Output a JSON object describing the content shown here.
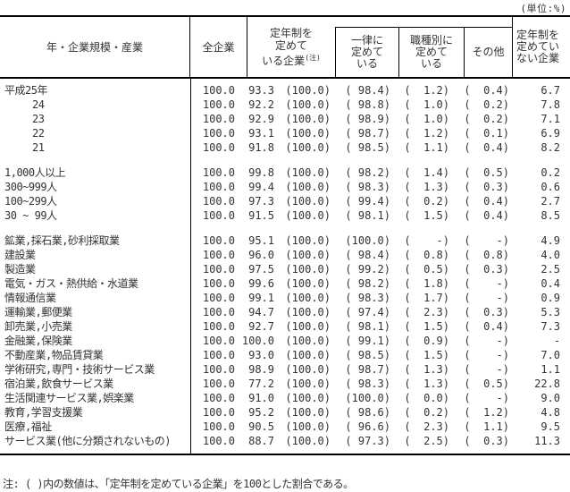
{
  "unit_label": "(単位:%)",
  "header": {
    "category": "年・企業規模・産業",
    "all_companies": "全企業",
    "teinen_group_lines": [
      "定年制を",
      "定めて",
      "いる企業"
    ],
    "teinen_note_mark": "(注)",
    "uniform_lines": [
      "一律に",
      "定めて",
      "いる"
    ],
    "by_job_lines": [
      "職種別に",
      "定めて",
      "いる"
    ],
    "other": "その他",
    "no_teinen_lines": [
      "定年制を",
      "定めてい",
      "ない企業"
    ]
  },
  "table": {
    "sections": [
      {
        "name": "years",
        "rows": [
          {
            "label": "平成25年",
            "indent": false,
            "values": [
              "100.0",
              "93.3",
              "(100.0)",
              "( 98.4)",
              "(  1.2)",
              "(  0.4)",
              "6.7"
            ]
          },
          {
            "label": "24",
            "indent": true,
            "values": [
              "100.0",
              "92.2",
              "(100.0)",
              "( 98.8)",
              "(  1.0)",
              "(  0.2)",
              "7.8"
            ]
          },
          {
            "label": "23",
            "indent": true,
            "values": [
              "100.0",
              "92.9",
              "(100.0)",
              "( 98.9)",
              "(  1.0)",
              "(  0.2)",
              "7.1"
            ]
          },
          {
            "label": "22",
            "indent": true,
            "values": [
              "100.0",
              "93.1",
              "(100.0)",
              "( 98.7)",
              "(  1.2)",
              "(  0.1)",
              "6.9"
            ]
          },
          {
            "label": "21",
            "indent": true,
            "values": [
              "100.0",
              "91.8",
              "(100.0)",
              "( 98.5)",
              "(  1.1)",
              "(  0.4)",
              "8.2"
            ]
          }
        ]
      },
      {
        "name": "company_size",
        "rows": [
          {
            "label": "1,000人以上",
            "indent": false,
            "values": [
              "100.0",
              "99.8",
              "(100.0)",
              "( 98.2)",
              "(  1.4)",
              "(  0.5)",
              "0.2"
            ]
          },
          {
            "label": "300~999人",
            "indent": false,
            "values": [
              "100.0",
              "99.4",
              "(100.0)",
              "( 98.3)",
              "(  1.3)",
              "(  0.3)",
              "0.6"
            ]
          },
          {
            "label": "100~299人",
            "indent": false,
            "values": [
              "100.0",
              "97.3",
              "(100.0)",
              "( 99.4)",
              "(  0.2)",
              "(  0.4)",
              "2.7"
            ]
          },
          {
            "label": "30 ~ 99人",
            "indent": false,
            "values": [
              "100.0",
              "91.5",
              "(100.0)",
              "( 98.1)",
              "(  1.5)",
              "(  0.4)",
              "8.5"
            ]
          }
        ]
      },
      {
        "name": "industry",
        "rows": [
          {
            "label": "鉱業,採石業,砂利採取業",
            "indent": false,
            "values": [
              "100.0",
              "95.1",
              "(100.0)",
              "(100.0)",
              "(    -)",
              "(    -)",
              "4.9"
            ]
          },
          {
            "label": "建設業",
            "indent": false,
            "values": [
              "100.0",
              "96.0",
              "(100.0)",
              "( 98.4)",
              "(  0.8)",
              "(  0.8)",
              "4.0"
            ]
          },
          {
            "label": "製造業",
            "indent": false,
            "values": [
              "100.0",
              "97.5",
              "(100.0)",
              "( 99.2)",
              "(  0.5)",
              "(  0.3)",
              "2.5"
            ]
          },
          {
            "label": "電気・ガス・熱供給・水道業",
            "indent": false,
            "values": [
              "100.0",
              "99.6",
              "(100.0)",
              "( 98.2)",
              "(  1.8)",
              "(    -)",
              "0.4"
            ]
          },
          {
            "label": "情報通信業",
            "indent": false,
            "values": [
              "100.0",
              "99.1",
              "(100.0)",
              "( 98.3)",
              "(  1.7)",
              "(    -)",
              "0.9"
            ]
          },
          {
            "label": "運輸業,郵便業",
            "indent": false,
            "values": [
              "100.0",
              "94.7",
              "(100.0)",
              "( 97.4)",
              "(  2.3)",
              "(  0.3)",
              "5.3"
            ]
          },
          {
            "label": "卸売業,小売業",
            "indent": false,
            "values": [
              "100.0",
              "92.7",
              "(100.0)",
              "( 98.1)",
              "(  1.5)",
              "(  0.4)",
              "7.3"
            ]
          },
          {
            "label": "金融業,保険業",
            "indent": false,
            "values": [
              "100.0",
              "100.0",
              "(100.0)",
              "( 99.1)",
              "(  0.9)",
              "(    -)",
              "-"
            ]
          },
          {
            "label": "不動産業,物品賃貸業",
            "indent": false,
            "values": [
              "100.0",
              "93.0",
              "(100.0)",
              "( 98.5)",
              "(  1.5)",
              "(    -)",
              "7.0"
            ]
          },
          {
            "label": "学術研究,専門・技術サービス業",
            "indent": false,
            "values": [
              "100.0",
              "98.9",
              "(100.0)",
              "( 98.7)",
              "(  1.3)",
              "(    -)",
              "1.1"
            ]
          },
          {
            "label": "宿泊業,飲食サービス業",
            "indent": false,
            "values": [
              "100.0",
              "77.2",
              "(100.0)",
              "( 98.3)",
              "(  1.3)",
              "(  0.5)",
              "22.8"
            ]
          },
          {
            "label": "生活関連サービス業,娯楽業",
            "indent": false,
            "values": [
              "100.0",
              "91.0",
              "(100.0)",
              "(100.0)",
              "(  0.0)",
              "(    -)",
              "9.0"
            ]
          },
          {
            "label": "教育,学習支援業",
            "indent": false,
            "values": [
              "100.0",
              "95.2",
              "(100.0)",
              "( 98.6)",
              "(  0.2)",
              "(  1.2)",
              "4.8"
            ]
          },
          {
            "label": "医療,福祉",
            "indent": false,
            "values": [
              "100.0",
              "90.5",
              "(100.0)",
              "( 96.6)",
              "(  2.3)",
              "(  1.1)",
              "9.5"
            ]
          },
          {
            "label": "サービス業(他に分類されないもの)",
            "indent": false,
            "values": [
              "100.0",
              "88.7",
              "(100.0)",
              "( 97.3)",
              "(  2.5)",
              "(  0.3)",
              "11.3"
            ]
          }
        ]
      }
    ]
  },
  "footnote": "注: ( )内の数値は、「定年制を定めている企業」を100とした割合である。"
}
